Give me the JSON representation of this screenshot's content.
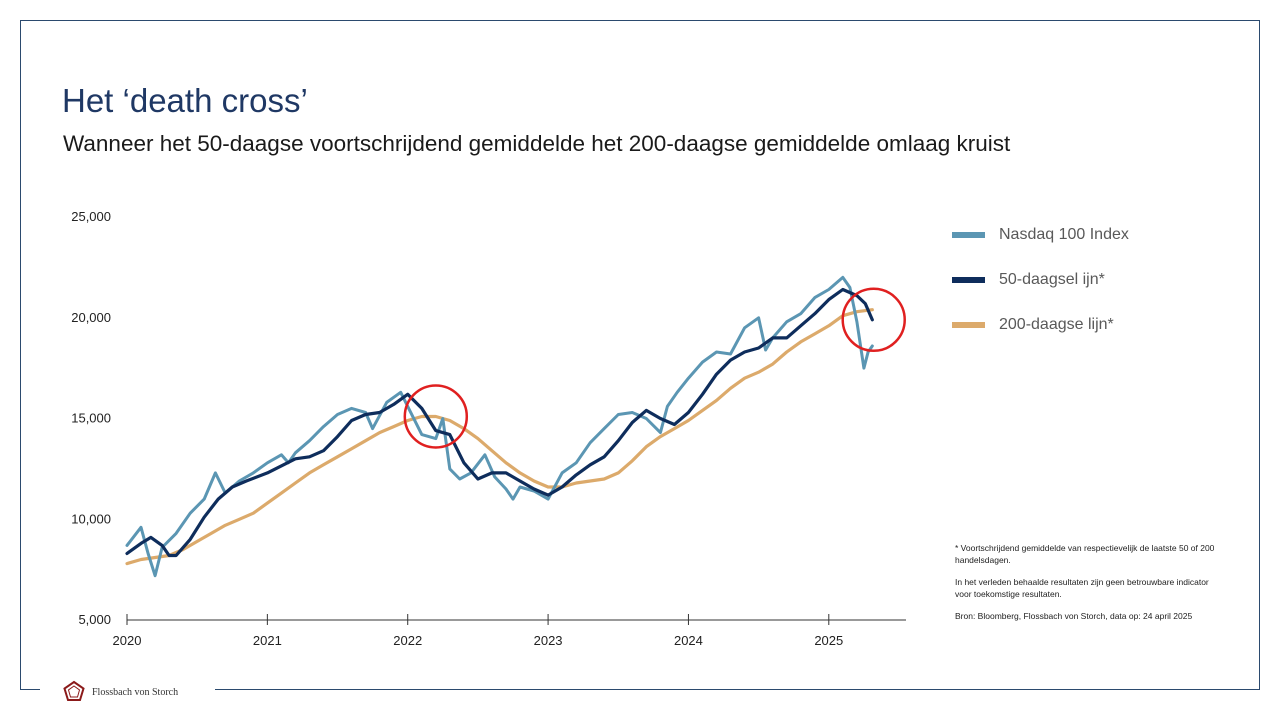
{
  "title": "Het ‘death cross’",
  "subtitle": "Wanneer het 50-daagse voortschrijdend gemiddelde het 200-daagse gemiddelde omlaag kruist",
  "legend": [
    {
      "label": "Nasdaq 100 Index",
      "color": "#5b96b3"
    },
    {
      "label": "50-daagsel ijn*",
      "color": "#0e2d5c"
    },
    {
      "label": "200-daagse lijn*",
      "color": "#dcaa6b"
    }
  ],
  "notes": {
    "footnote": "* Voortschrijdend gemiddelde van respectievelijk de laatste 50 of 200 handelsdagen.",
    "disclaimer": "In het verleden behaalde resultaten zijn geen betrouwbare indicator voor toekomstige resultaten.",
    "source": "Bron: Bloomberg, Flossbach von Storch, data op: 24 april 2025"
  },
  "logo_text": "Flossbach von Storch",
  "chart_data": {
    "type": "line",
    "ylim": [
      5000,
      25000
    ],
    "xlim": [
      2020.0,
      2025.55
    ],
    "y_ticks": [
      5000,
      10000,
      15000,
      20000,
      25000
    ],
    "y_tick_labels": [
      "5,000",
      "10,000",
      "15,000",
      "20,000",
      "25,000"
    ],
    "x_ticks": [
      2020,
      2021,
      2022,
      2023,
      2024,
      2025
    ],
    "x_tick_labels": [
      "2020",
      "2021",
      "2022",
      "2023",
      "2024",
      "2025"
    ],
    "grid": false,
    "legend_position": "right",
    "annotations": [
      {
        "type": "circle",
        "x": 2022.2,
        "y": 15100,
        "color": "#e02020"
      },
      {
        "type": "circle",
        "x": 2025.32,
        "y": 19900,
        "color": "#e02020"
      }
    ],
    "series": [
      {
        "name": "Nasdaq 100 Index",
        "color": "#5b96b3",
        "x": [
          2020.0,
          2020.1,
          2020.15,
          2020.2,
          2020.25,
          2020.35,
          2020.45,
          2020.55,
          2020.63,
          2020.7,
          2020.8,
          2020.9,
          2021.0,
          2021.1,
          2021.15,
          2021.2,
          2021.3,
          2021.4,
          2021.5,
          2021.6,
          2021.7,
          2021.75,
          2021.85,
          2021.95,
          2022.0,
          2022.1,
          2022.2,
          2022.25,
          2022.3,
          2022.37,
          2022.45,
          2022.55,
          2022.62,
          2022.7,
          2022.75,
          2022.8,
          2022.9,
          2023.0,
          2023.1,
          2023.2,
          2023.3,
          2023.4,
          2023.5,
          2023.6,
          2023.7,
          2023.8,
          2023.85,
          2023.92,
          2024.0,
          2024.1,
          2024.2,
          2024.3,
          2024.4,
          2024.5,
          2024.55,
          2024.6,
          2024.7,
          2024.8,
          2024.9,
          2025.0,
          2025.1,
          2025.15,
          2025.2,
          2025.25,
          2025.28,
          2025.31
        ],
        "values": [
          8700,
          9600,
          8300,
          7200,
          8600,
          9300,
          10300,
          11000,
          12300,
          11300,
          11900,
          12300,
          12800,
          13200,
          12800,
          13300,
          13900,
          14600,
          15200,
          15500,
          15300,
          14500,
          15800,
          16300,
          15600,
          14200,
          14000,
          15000,
          12500,
          12000,
          12300,
          13200,
          12100,
          11500,
          11000,
          11600,
          11400,
          11000,
          12300,
          12800,
          13800,
          14500,
          15200,
          15300,
          15000,
          14300,
          15600,
          16300,
          17000,
          17800,
          18300,
          18200,
          19500,
          20000,
          18400,
          19000,
          19800,
          20200,
          21000,
          21400,
          22000,
          21500,
          19800,
          17500,
          18300,
          18600
        ]
      },
      {
        "name": "50-daagsel ijn*",
        "color": "#0e2d5c",
        "x": [
          2020.0,
          2020.1,
          2020.17,
          2020.25,
          2020.3,
          2020.35,
          2020.45,
          2020.55,
          2020.65,
          2020.75,
          2020.85,
          2021.0,
          2021.2,
          2021.3,
          2021.4,
          2021.5,
          2021.6,
          2021.7,
          2021.8,
          2021.9,
          2022.0,
          2022.1,
          2022.2,
          2022.3,
          2022.4,
          2022.5,
          2022.6,
          2022.7,
          2022.8,
          2022.9,
          2023.0,
          2023.1,
          2023.2,
          2023.3,
          2023.4,
          2023.5,
          2023.6,
          2023.7,
          2023.8,
          2023.9,
          2024.0,
          2024.1,
          2024.2,
          2024.3,
          2024.4,
          2024.5,
          2024.6,
          2024.7,
          2024.8,
          2024.9,
          2025.0,
          2025.1,
          2025.2,
          2025.26,
          2025.31
        ],
        "values": [
          8300,
          8800,
          9100,
          8700,
          8200,
          8200,
          9000,
          10100,
          11000,
          11600,
          11900,
          12300,
          13000,
          13100,
          13400,
          14100,
          14900,
          15200,
          15300,
          15700,
          16200,
          15500,
          14400,
          14200,
          12800,
          12000,
          12300,
          12300,
          11900,
          11500,
          11200,
          11600,
          12200,
          12700,
          13100,
          13900,
          14800,
          15400,
          15000,
          14700,
          15300,
          16200,
          17200,
          17900,
          18300,
          18500,
          19000,
          19000,
          19600,
          20200,
          20900,
          21400,
          21100,
          20700,
          19900
        ]
      },
      {
        "name": "200-daagse lijn*",
        "color": "#dcaa6b",
        "x": [
          2020.0,
          2020.1,
          2020.2,
          2020.3,
          2020.4,
          2020.5,
          2020.6,
          2020.7,
          2020.8,
          2020.9,
          2021.0,
          2021.1,
          2021.2,
          2021.3,
          2021.4,
          2021.5,
          2021.6,
          2021.7,
          2021.8,
          2021.9,
          2022.0,
          2022.1,
          2022.2,
          2022.3,
          2022.4,
          2022.5,
          2022.6,
          2022.7,
          2022.8,
          2022.9,
          2023.0,
          2023.1,
          2023.2,
          2023.3,
          2023.4,
          2023.5,
          2023.6,
          2023.7,
          2023.8,
          2023.9,
          2024.0,
          2024.1,
          2024.2,
          2024.3,
          2024.4,
          2024.5,
          2024.6,
          2024.7,
          2024.8,
          2024.9,
          2025.0,
          2025.1,
          2025.2,
          2025.31
        ],
        "values": [
          7800,
          8000,
          8100,
          8200,
          8500,
          8900,
          9300,
          9700,
          10000,
          10300,
          10800,
          11300,
          11800,
          12300,
          12700,
          13100,
          13500,
          13900,
          14300,
          14600,
          14900,
          15100,
          15100,
          14900,
          14500,
          14000,
          13400,
          12800,
          12300,
          11900,
          11600,
          11600,
          11800,
          11900,
          12000,
          12300,
          12900,
          13600,
          14100,
          14500,
          14900,
          15400,
          15900,
          16500,
          17000,
          17300,
          17700,
          18300,
          18800,
          19200,
          19600,
          20100,
          20300,
          20400
        ]
      }
    ]
  }
}
